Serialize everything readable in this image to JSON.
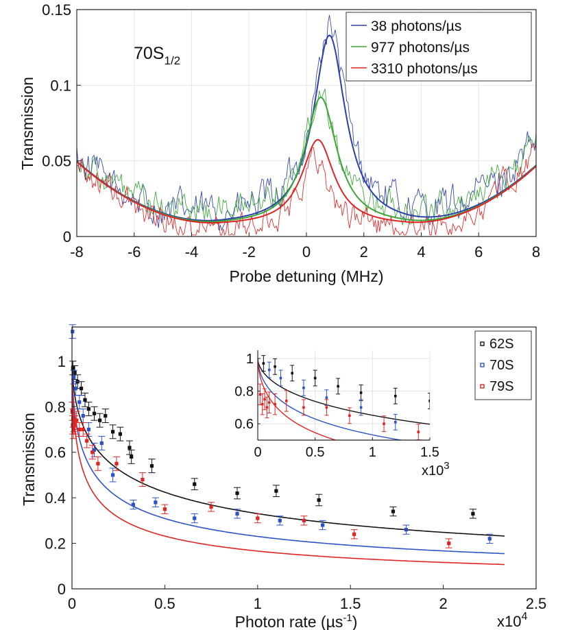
{
  "chart_data": [
    {
      "type": "line",
      "title": "",
      "annotation": {
        "main": "70S",
        "sub": "1/2"
      },
      "xlabel": "Probe detuning (MHz)",
      "ylabel": "Transmission",
      "xlim": [
        -8,
        8
      ],
      "ylim": [
        0,
        0.15
      ],
      "xticks": [
        -8,
        -6,
        -4,
        -2,
        0,
        2,
        4,
        6,
        8
      ],
      "xtick_labels": [
        "-8",
        "-6",
        "-4",
        "-2",
        "0",
        "2",
        "4",
        "6",
        "8"
      ],
      "yticks": [
        0,
        0.05,
        0.1,
        0.15
      ],
      "ytick_labels": [
        "0",
        "0.05",
        "0.1",
        "0.15"
      ],
      "grid": true,
      "legend_position": "top-right",
      "series": [
        {
          "name": "38 photons/µs",
          "color": "#2b3fa8",
          "peak_x": 0.8,
          "peak_y": 0.133
        },
        {
          "name": "977 photons/µs",
          "color": "#3aa635",
          "peak_x": 0.5,
          "peak_y": 0.092
        },
        {
          "name": "3310 photons/µs",
          "color": "#e02323",
          "peak_x": 0.4,
          "peak_y": 0.064
        }
      ],
      "fit_model": {
        "peak_width": 1.1,
        "background": {
          "at_-8": 0.049,
          "min_x_left": -3.0,
          "min_y_left": 0.007,
          "min_x_right": 3.5,
          "min_y_right": 0.007,
          "at_8": 0.046
        }
      },
      "data_offset": {
        "38 photons/µs": 0.006,
        "977 photons/µs": 0.008,
        "3310 photons/µs": -0.005
      }
    },
    {
      "type": "scatter",
      "title": "",
      "xlabel": "Photon rate (µs",
      "xlabel_sup": "-1",
      "xlabel_end": ")",
      "ylabel": "Transmission",
      "xlim": [
        0,
        25000
      ],
      "ylim": [
        0,
        1.15
      ],
      "xticks": [
        0,
        5000,
        10000,
        15000,
        20000,
        25000
      ],
      "xtick_labels": [
        "0",
        "0.5",
        "1",
        "1.5",
        "2",
        "2.5"
      ],
      "x_multiplier": {
        "base": "x10",
        "exp": "4"
      },
      "yticks": [
        0,
        0.2,
        0.4,
        0.6,
        0.8,
        1.0
      ],
      "ytick_labels": [
        "0",
        "0.2",
        "0.4",
        "0.6",
        "0.8",
        "1"
      ],
      "grid": false,
      "legend_position": "top-right",
      "series": [
        {
          "name": "62S",
          "color": "#111111",
          "fit_b": 0.0097,
          "fit_a": 0.58,
          "points": [
            [
              50,
              0.97,
              0.03
            ],
            [
              150,
              0.95,
              0.03
            ],
            [
              300,
              0.91,
              0.03
            ],
            [
              500,
              0.88,
              0.03
            ],
            [
              700,
              0.83,
              0.03
            ],
            [
              900,
              0.79,
              0.03
            ],
            [
              1200,
              0.77,
              0.03
            ],
            [
              1500,
              0.74,
              0.03
            ],
            [
              1800,
              0.76,
              0.03
            ],
            [
              2200,
              0.69,
              0.03
            ],
            [
              2600,
              0.68,
              0.03
            ],
            [
              3100,
              0.62,
              0.03
            ],
            [
              3200,
              0.58,
              0.03
            ],
            [
              4300,
              0.54,
              0.03
            ],
            [
              6600,
              0.46,
              0.025
            ],
            [
              8900,
              0.42,
              0.025
            ],
            [
              11000,
              0.43,
              0.025
            ],
            [
              13300,
              0.39,
              0.025
            ],
            [
              17300,
              0.34,
              0.02
            ],
            [
              21600,
              0.33,
              0.02
            ]
          ]
        },
        {
          "name": "70S",
          "color": "#2b52c8",
          "fit_b": 0.016,
          "fit_a": 0.58,
          "points": [
            [
              30,
              1.13,
              0.03
            ],
            [
              100,
              0.93,
              0.03
            ],
            [
              200,
              0.88,
              0.03
            ],
            [
              400,
              0.82,
              0.03
            ],
            [
              600,
              0.76,
              0.03
            ],
            [
              900,
              0.7,
              0.03
            ],
            [
              1200,
              0.61,
              0.03
            ],
            [
              1600,
              0.64,
              0.03
            ],
            [
              2200,
              0.5,
              0.03
            ],
            [
              3300,
              0.37,
              0.02
            ],
            [
              4500,
              0.38,
              0.02
            ],
            [
              6600,
              0.31,
              0.02
            ],
            [
              8900,
              0.33,
              0.02
            ],
            [
              11200,
              0.3,
              0.02
            ],
            [
              13500,
              0.28,
              0.02
            ],
            [
              18000,
              0.26,
              0.02
            ],
            [
              22500,
              0.22,
              0.02
            ]
          ]
        },
        {
          "name": "79S",
          "color": "#e02323",
          "fit_b": 0.02,
          "fit_a": 0.6,
          "points": [
            [
              20,
              0.78,
              0.04
            ],
            [
              40,
              0.72,
              0.04
            ],
            [
              60,
              0.75,
              0.04
            ],
            [
              80,
              0.7,
              0.04
            ],
            [
              100,
              0.73,
              0.04
            ],
            [
              150,
              0.72,
              0.04
            ],
            [
              250,
              0.74,
              0.04
            ],
            [
              400,
              0.7,
              0.03
            ],
            [
              600,
              0.7,
              0.03
            ],
            [
              800,
              0.65,
              0.03
            ],
            [
              1100,
              0.6,
              0.03
            ],
            [
              1400,
              0.55,
              0.03
            ],
            [
              2400,
              0.55,
              0.03
            ],
            [
              3800,
              0.48,
              0.03
            ],
            [
              5000,
              0.35,
              0.02
            ],
            [
              7500,
              0.36,
              0.02
            ],
            [
              10000,
              0.31,
              0.02
            ],
            [
              12500,
              0.3,
              0.02
            ],
            [
              15200,
              0.24,
              0.02
            ],
            [
              20300,
              0.2,
              0.02
            ]
          ]
        }
      ],
      "fit_x_max": 23300,
      "inset": {
        "xlim": [
          0,
          1500
        ],
        "ylim": [
          0.5,
          1.05
        ],
        "xticks": [
          0,
          500,
          1000,
          1500
        ],
        "xtick_labels": [
          "0",
          "0.5",
          "1",
          "1.5"
        ],
        "x_multiplier": {
          "base": "x10",
          "exp": "3"
        },
        "yticks": [
          0.6,
          0.8,
          1.0
        ],
        "ytick_labels": [
          "0.6",
          "0.8",
          "1"
        ],
        "grid": true
      }
    }
  ]
}
